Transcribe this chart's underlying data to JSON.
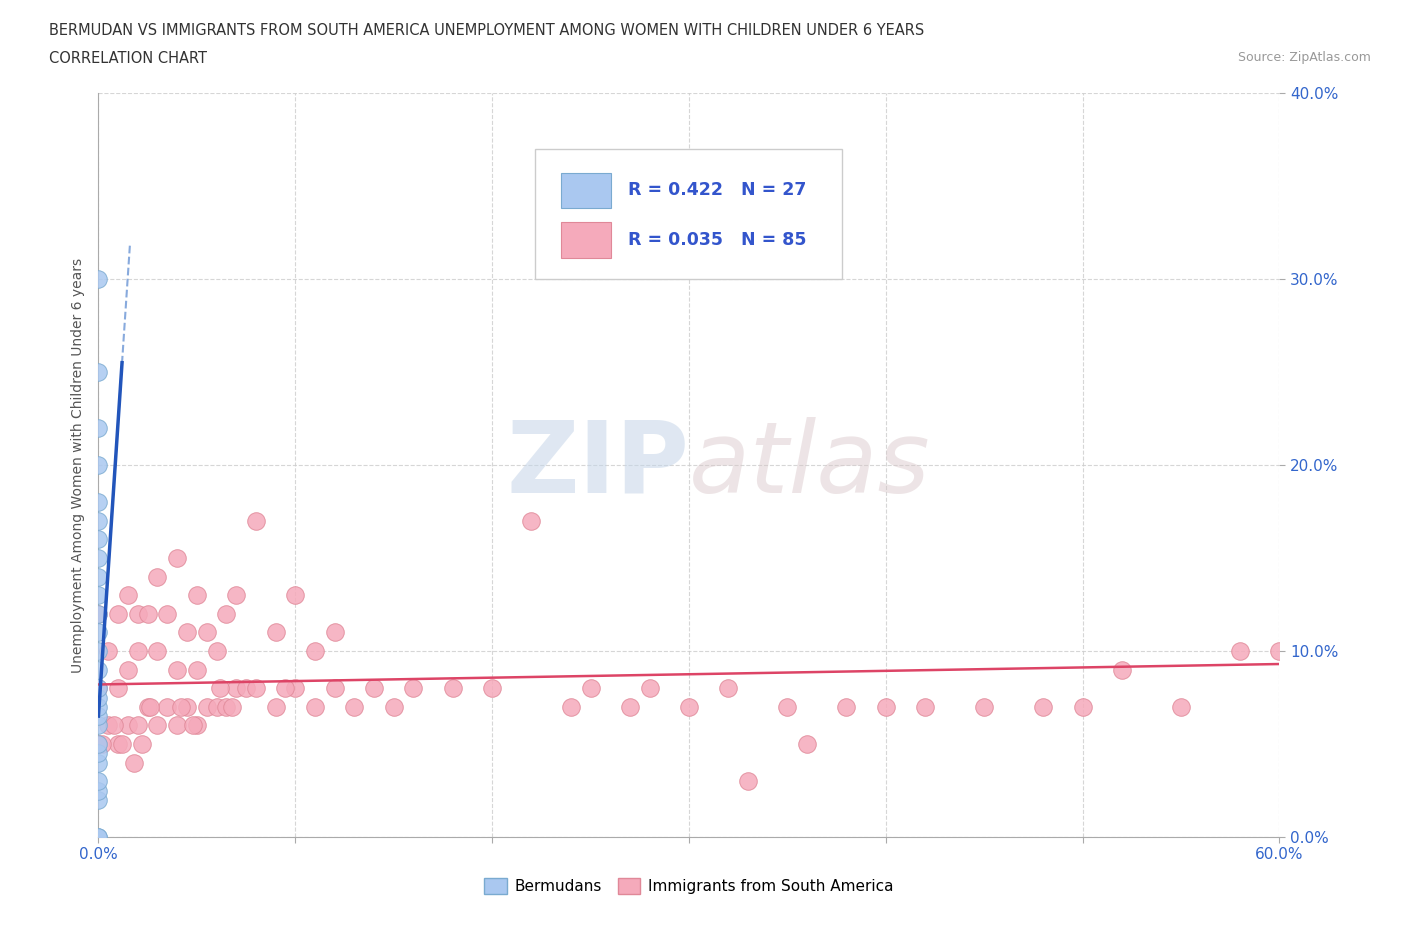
{
  "title_line1": "BERMUDAN VS IMMIGRANTS FROM SOUTH AMERICA UNEMPLOYMENT AMONG WOMEN WITH CHILDREN UNDER 6 YEARS",
  "title_line2": "CORRELATION CHART",
  "source": "Source: ZipAtlas.com",
  "ylabel": "Unemployment Among Women with Children Under 6 years",
  "xlim": [
    0.0,
    0.6
  ],
  "ylim": [
    0.0,
    0.4
  ],
  "xticks": [
    0.0,
    0.1,
    0.2,
    0.3,
    0.4,
    0.5,
    0.6
  ],
  "yticks": [
    0.0,
    0.1,
    0.2,
    0.3,
    0.4
  ],
  "x_bottom_labels": {
    "0.0": "0.0%",
    "0.60": "60.0%"
  },
  "ytick_labels": [
    "0.0%",
    "10.0%",
    "20.0%",
    "30.0%",
    "40.0%"
  ],
  "background_color": "#ffffff",
  "watermark_zip": "ZIP",
  "watermark_atlas": "atlas",
  "bermuda_color": "#aac8f0",
  "bermuda_edge_color": "#7aaad0",
  "south_america_color": "#f5aabb",
  "south_america_edge_color": "#e08898",
  "bermuda_R": 0.422,
  "bermuda_N": 27,
  "south_america_R": 0.035,
  "south_america_N": 85,
  "legend_R_color": "#3355cc",
  "bermuda_scatter_x": [
    0.0,
    0.0,
    0.0,
    0.0,
    0.0,
    0.0,
    0.0,
    0.0,
    0.0,
    0.0,
    0.0,
    0.0,
    0.0,
    0.0,
    0.0,
    0.0,
    0.0,
    0.0,
    0.0,
    0.0,
    0.0,
    0.0,
    0.0,
    0.0,
    0.0,
    0.0,
    0.0
  ],
  "bermuda_scatter_y": [
    0.0,
    0.0,
    0.02,
    0.025,
    0.03,
    0.04,
    0.045,
    0.05,
    0.06,
    0.065,
    0.07,
    0.075,
    0.08,
    0.09,
    0.1,
    0.11,
    0.12,
    0.13,
    0.14,
    0.15,
    0.16,
    0.17,
    0.18,
    0.2,
    0.22,
    0.25,
    0.3
  ],
  "south_america_scatter_x": [
    0.0,
    0.0,
    0.0,
    0.005,
    0.005,
    0.01,
    0.01,
    0.01,
    0.015,
    0.015,
    0.015,
    0.02,
    0.02,
    0.02,
    0.025,
    0.025,
    0.03,
    0.03,
    0.03,
    0.035,
    0.035,
    0.04,
    0.04,
    0.04,
    0.045,
    0.045,
    0.05,
    0.05,
    0.05,
    0.055,
    0.055,
    0.06,
    0.06,
    0.065,
    0.065,
    0.07,
    0.07,
    0.075,
    0.08,
    0.08,
    0.09,
    0.09,
    0.1,
    0.1,
    0.11,
    0.11,
    0.12,
    0.12,
    0.13,
    0.14,
    0.15,
    0.16,
    0.18,
    0.2,
    0.22,
    0.24,
    0.25,
    0.27,
    0.3,
    0.32,
    0.35,
    0.38,
    0.4,
    0.42,
    0.45,
    0.28,
    0.33,
    0.36,
    0.48,
    0.5,
    0.52,
    0.55,
    0.58,
    0.6,
    0.002,
    0.008,
    0.012,
    0.018,
    0.022,
    0.026,
    0.042,
    0.048,
    0.062,
    0.068,
    0.095
  ],
  "south_america_scatter_y": [
    0.05,
    0.08,
    0.12,
    0.06,
    0.1,
    0.05,
    0.08,
    0.12,
    0.06,
    0.09,
    0.13,
    0.06,
    0.1,
    0.12,
    0.07,
    0.12,
    0.06,
    0.1,
    0.14,
    0.07,
    0.12,
    0.06,
    0.09,
    0.15,
    0.07,
    0.11,
    0.06,
    0.09,
    0.13,
    0.07,
    0.11,
    0.07,
    0.1,
    0.07,
    0.12,
    0.08,
    0.13,
    0.08,
    0.08,
    0.17,
    0.07,
    0.11,
    0.08,
    0.13,
    0.07,
    0.1,
    0.08,
    0.11,
    0.07,
    0.08,
    0.07,
    0.08,
    0.08,
    0.08,
    0.17,
    0.07,
    0.08,
    0.07,
    0.07,
    0.08,
    0.07,
    0.07,
    0.07,
    0.07,
    0.07,
    0.08,
    0.03,
    0.05,
    0.07,
    0.07,
    0.09,
    0.07,
    0.1,
    0.1,
    0.05,
    0.06,
    0.05,
    0.04,
    0.05,
    0.07,
    0.07,
    0.06,
    0.08,
    0.07,
    0.08
  ],
  "grid_color": "#cccccc",
  "tick_color": "#3366cc",
  "blue_trend_color": "#2255bb",
  "blue_trend_dashed_color": "#88aadd",
  "pink_trend_color": "#dd4466"
}
